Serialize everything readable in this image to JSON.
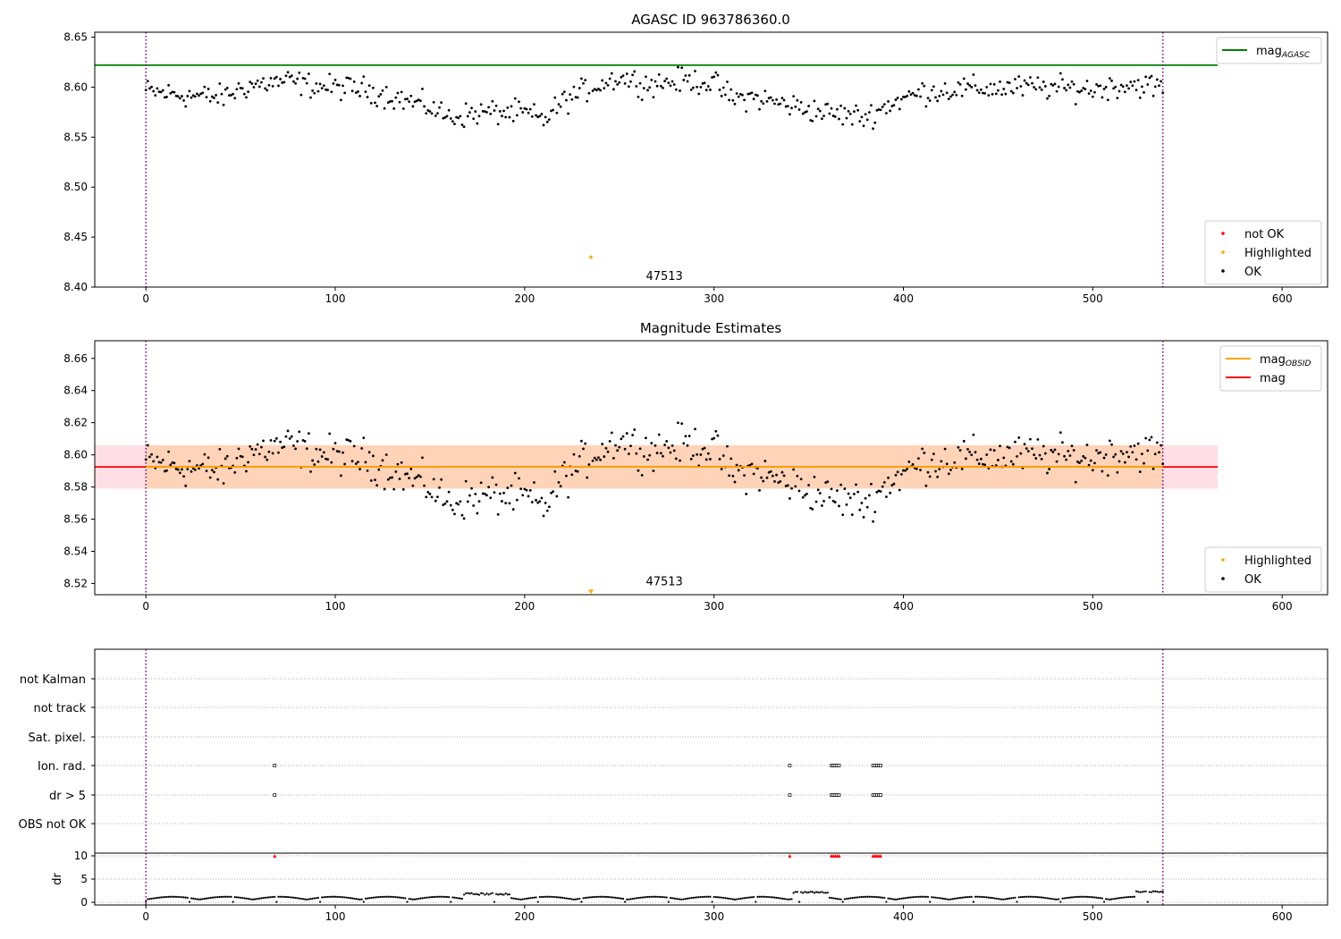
{
  "chart_data": [
    {
      "type": "scatter",
      "title": "AGASC ID 963786360.0",
      "xlabel": "",
      "ylabel": "",
      "xlim": [
        -27,
        624
      ],
      "ylim": [
        8.4,
        8.655
      ],
      "xticks": [
        0,
        100,
        200,
        300,
        400,
        500,
        600
      ],
      "xtick_labels": [
        "0",
        "100",
        "200",
        "300",
        "400",
        "500",
        "600"
      ],
      "yticks": [
        8.4,
        8.45,
        8.5,
        8.55,
        8.6,
        8.65
      ],
      "ytick_labels": [
        "8.40",
        "8.45",
        "8.50",
        "8.55",
        "8.60",
        "8.65"
      ],
      "grid": false,
      "vertical_lines": [
        0,
        537
      ],
      "hlines": [
        {
          "name": "AGASC",
          "y": 8.622,
          "color": "#008000",
          "x_range": [
            -27,
            566
          ]
        }
      ],
      "annotations": [
        {
          "text": "47513",
          "x": 270,
          "y": 8.41
        }
      ],
      "series": [
        {
          "name": "OK",
          "color": "#000000",
          "marker": "dot",
          "profile": "mag"
        },
        {
          "name": "Highlighted",
          "color": "#FFA500",
          "marker": "dot",
          "points": [
            [
              235,
              8.43
            ]
          ]
        }
      ],
      "legends": [
        {
          "placement": "top-right",
          "entries": [
            {
              "label": "mag",
              "sub": "AGASC",
              "kind": "line",
              "color": "#008000"
            }
          ]
        },
        {
          "placement": "bottom-right",
          "entries": [
            {
              "label": "not OK",
              "kind": "dot",
              "color": "#FF0000"
            },
            {
              "label": "Highlighted",
              "kind": "dot",
              "color": "#FFA500"
            },
            {
              "label": "OK",
              "kind": "dot",
              "color": "#000000"
            }
          ]
        }
      ]
    },
    {
      "type": "scatter",
      "title": "Magnitude Estimates",
      "xlabel": "",
      "ylabel": "",
      "xlim": [
        -27,
        624
      ],
      "ylim": [
        8.513,
        8.671
      ],
      "xticks": [
        0,
        100,
        200,
        300,
        400,
        500,
        600
      ],
      "xtick_labels": [
        "0",
        "100",
        "200",
        "300",
        "400",
        "500",
        "600"
      ],
      "yticks": [
        8.52,
        8.54,
        8.56,
        8.58,
        8.6,
        8.62,
        8.64,
        8.66
      ],
      "ytick_labels": [
        "8.52",
        "8.54",
        "8.56",
        "8.58",
        "8.60",
        "8.62",
        "8.64",
        "8.66"
      ],
      "grid": false,
      "vertical_lines": [
        0,
        537
      ],
      "bands": [
        {
          "name": "mag range",
          "y0": 8.579,
          "y1": 8.606,
          "x_range": [
            -27,
            566
          ],
          "color": "#FFC0CB",
          "opacity": 0.5
        },
        {
          "name": "mag OBSID range",
          "y0": 8.579,
          "y1": 8.606,
          "x_range": [
            0,
            537
          ],
          "color": "#FFA500",
          "opacity": 0.2
        }
      ],
      "hlines": [
        {
          "name": "mag",
          "y": 8.5925,
          "color": "#FF0000",
          "x_range": [
            -27,
            566
          ]
        },
        {
          "name": "mag OBSID",
          "y": 8.5925,
          "color": "#FFA500",
          "x_range": [
            0,
            537
          ]
        }
      ],
      "annotations": [
        {
          "text": "47513",
          "x": 270,
          "y": 8.5155
        }
      ],
      "series": [
        {
          "name": "OK",
          "color": "#000000",
          "marker": "dot",
          "profile": "mag"
        },
        {
          "name": "Highlighted",
          "color": "#FFA500",
          "marker": "triangle-down",
          "points": [
            [
              235,
              8.5145
            ]
          ]
        }
      ],
      "legends": [
        {
          "placement": "top-right",
          "entries": [
            {
              "label": "mag",
              "sub": "OBSID",
              "kind": "line",
              "color": "#FFA500"
            },
            {
              "label": "mag",
              "kind": "line",
              "color": "#FF0000"
            }
          ]
        },
        {
          "placement": "bottom-right",
          "entries": [
            {
              "label": "Highlighted",
              "kind": "dot",
              "color": "#FFA500"
            },
            {
              "label": "OK",
              "kind": "dot",
              "color": "#000000"
            }
          ]
        }
      ]
    },
    {
      "type": "scatter",
      "title": "",
      "xlabel": "",
      "ylabel": "",
      "xlim": [
        -27,
        624
      ],
      "categories": [
        "not Kalman",
        "not track",
        "Sat. pixel.",
        "Ion. rad.",
        "dr > 5",
        "OBS not OK"
      ],
      "grid": true,
      "vertical_lines": [
        0,
        537
      ],
      "flag_points": {
        "Ion. rad.": [
          68,
          340,
          362,
          363,
          364,
          365,
          366,
          384,
          385,
          386,
          387,
          388
        ],
        "dr > 5": [
          68,
          340,
          362,
          363,
          364,
          365,
          366,
          384,
          385,
          386,
          387,
          388
        ]
      }
    },
    {
      "type": "scatter",
      "title": "",
      "xlabel": "",
      "ylabel": "dr",
      "xlim": [
        -27,
        624
      ],
      "ylim": [
        -0.5,
        10.5
      ],
      "xticks": [
        0,
        100,
        200,
        300,
        400,
        500,
        600
      ],
      "xtick_labels": [
        "0",
        "100",
        "200",
        "300",
        "400",
        "500",
        "600"
      ],
      "yticks": [
        0,
        5,
        10
      ],
      "ytick_labels": [
        "0",
        "5",
        "10"
      ],
      "grid": true,
      "vertical_lines": [
        0,
        537
      ],
      "series": [
        {
          "name": "dr",
          "color": "#000000",
          "marker": "dot",
          "x_range": [
            0,
            537
          ],
          "profile": "dr"
        },
        {
          "name": "dr clipped",
          "color": "#FF0000",
          "marker": "triangle-up",
          "y": 10,
          "x": [
            68,
            340,
            362,
            363,
            364,
            365,
            366,
            384,
            385,
            386,
            387,
            388
          ]
        }
      ]
    }
  ]
}
